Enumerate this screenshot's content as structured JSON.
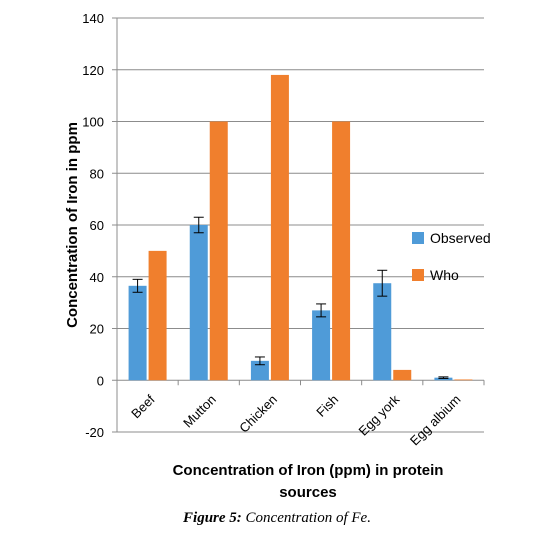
{
  "chart_data": {
    "type": "bar",
    "categories": [
      "Beef",
      "Mutton",
      "Chicken",
      "Fish",
      "Egg york",
      "Egg albium"
    ],
    "series": [
      {
        "name": "Observed",
        "color": "#4F9BD8",
        "values": [
          36.5,
          60,
          7.5,
          27,
          37.5,
          1
        ],
        "error": [
          2.5,
          3,
          1.5,
          2.5,
          5,
          0.3
        ]
      },
      {
        "name": "Who",
        "color": "#F07F2D",
        "values": [
          50,
          100,
          118,
          100,
          4,
          0.3
        ]
      }
    ],
    "ylim": [
      -20,
      140
    ],
    "yticks": [
      -20,
      0,
      20,
      40,
      60,
      80,
      100,
      120,
      140
    ],
    "ylabel": "Concentration of Iron in ppm",
    "xlabel_line1": "Concentration of Iron (ppm) in protein",
    "xlabel_line2": "sources",
    "legend_placement": "right",
    "grid": true
  },
  "caption": {
    "label": "Figure 5:",
    "text": " Concentration of Fe."
  }
}
